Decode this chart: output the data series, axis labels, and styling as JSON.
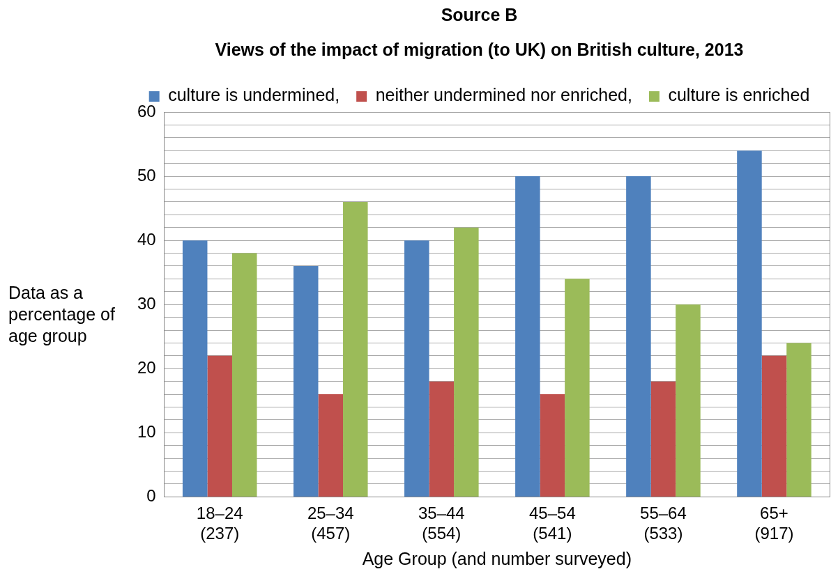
{
  "chart_data": {
    "type": "bar",
    "title": "Source B",
    "subtitle": "Views of the impact of migration (to UK) on British culture, 2013",
    "xlabel": "Age Group (and number surveyed)",
    "ylabel": "Data as a percentage of age group",
    "categories": [
      "18–24 (237)",
      "25–34 (457)",
      "35–44 (554)",
      "45–54 (541)",
      "55–64 (533)",
      "65+ (917)"
    ],
    "series": [
      {
        "name": "culture is undermined,",
        "color": "#4f81bd",
        "values": [
          40,
          36,
          40,
          50,
          50,
          54
        ]
      },
      {
        "name": "neither undermined nor enriched,",
        "color": "#c0504d",
        "values": [
          22,
          16,
          18,
          16,
          18,
          22
        ]
      },
      {
        "name": "culture is enriched",
        "color": "#9bbb59",
        "values": [
          38,
          46,
          42,
          34,
          30,
          24
        ]
      }
    ],
    "ylim": [
      0,
      60
    ],
    "yticks": [
      0,
      {
        "value": 2,
        "label": null
      },
      {
        "value": 4,
        "label": null
      },
      {
        "value": 6,
        "label": null
      },
      {
        "value": 8,
        "label": null
      },
      10,
      {
        "value": 12,
        "label": null
      },
      {
        "value": 14,
        "label": null
      },
      {
        "value": 16,
        "label": null
      },
      {
        "value": 18,
        "label": null
      },
      20,
      {
        "value": 22,
        "label": null
      },
      {
        "value": 24,
        "label": null
      },
      {
        "value": 26,
        "label": null
      },
      {
        "value": 28,
        "label": null
      },
      30,
      {
        "value": 32,
        "label": null
      },
      {
        "value": 34,
        "label": null
      },
      {
        "value": 36,
        "label": null
      },
      {
        "value": 38,
        "label": null
      },
      40,
      {
        "value": 42,
        "label": null
      },
      {
        "value": 44,
        "label": null
      },
      {
        "value": 46,
        "label": null
      },
      {
        "value": 48,
        "label": null
      },
      50,
      {
        "value": 52,
        "label": null
      },
      {
        "value": 54,
        "label": null
      },
      {
        "value": 56,
        "label": null
      },
      {
        "value": 58,
        "label": null
      },
      60
    ],
    "grid": "y",
    "legend": "top"
  }
}
